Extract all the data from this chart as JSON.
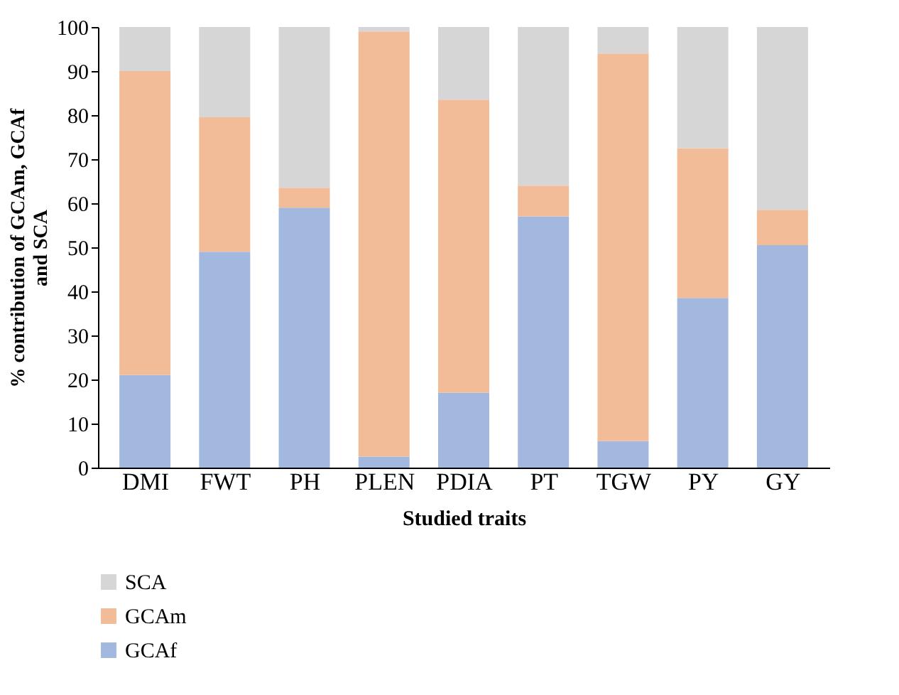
{
  "chart_data": {
    "type": "bar",
    "stacked": true,
    "categories": [
      "DMI",
      "FWT",
      "PH",
      "PLEN",
      "PDIA",
      "PT",
      "TGW",
      "PY",
      "GY"
    ],
    "series": [
      {
        "name": "GCAf",
        "color": "#a3b8df",
        "values": [
          21,
          49,
          59,
          2.5,
          17,
          57,
          6,
          38.5,
          50.5
        ]
      },
      {
        "name": "GCAm",
        "color": "#f2bc98",
        "values": [
          69,
          30.5,
          4.5,
          96.5,
          66.5,
          7,
          88,
          34,
          8
        ]
      },
      {
        "name": "SCA",
        "color": "#d6d6d6",
        "values": [
          10,
          20.5,
          36.5,
          1,
          16.5,
          36,
          6,
          27.5,
          41.5
        ]
      }
    ],
    "xlabel": "Studied traits",
    "ylabel": "% contribution of GCAm, GCAf and SCA",
    "ylim": [
      0,
      100
    ],
    "yticks": [
      0,
      10,
      20,
      30,
      40,
      50,
      60,
      70,
      80,
      90,
      100
    ],
    "grid": false,
    "legend": "bottom left"
  }
}
